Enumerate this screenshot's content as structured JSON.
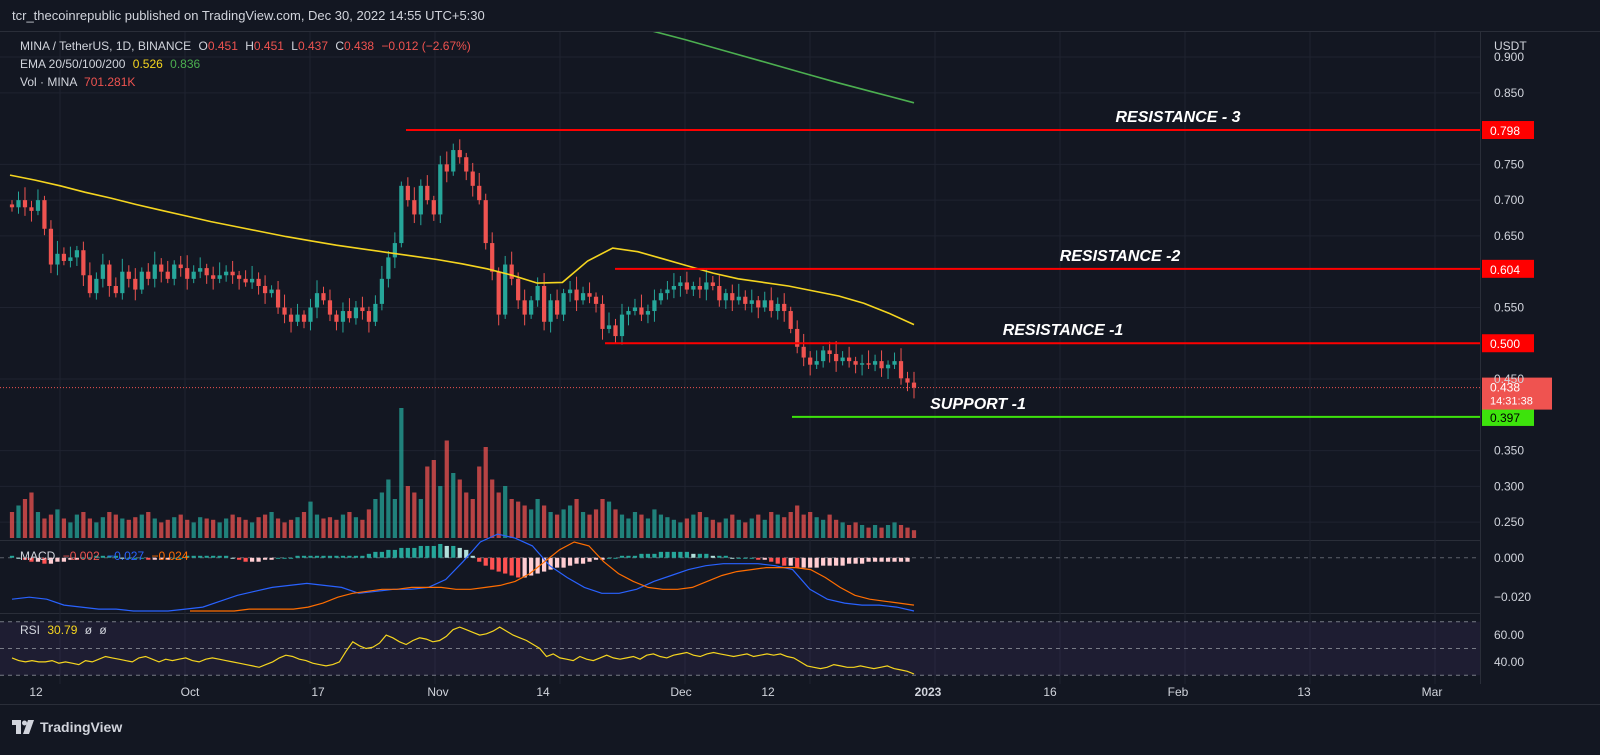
{
  "header": {
    "publish_line": "tcr_thecoinrepublic published on TradingView.com, Dec 30, 2022 14:55 UTC+5:30"
  },
  "legend": {
    "symbol": "MINA / TetherUS, 1D, BINANCE",
    "o_label": "O",
    "o": "0.451",
    "h_label": "H",
    "h": "0.451",
    "l_label": "L",
    "l": "0.437",
    "c_label": "C",
    "c": "0.438",
    "change": "−0.012 (−2.67%)",
    "ema_label": "EMA 20/50/100/200",
    "ema_val1": "0.526",
    "ema_val2": "0.836",
    "vol_label": "Vol · MINA",
    "vol_val": "701.281K"
  },
  "macd_legend": {
    "label": "MACD",
    "hist": "−0.002",
    "macd": "−0.027",
    "signal": "−0.024"
  },
  "rsi_legend": {
    "label": "RSI",
    "value": "30.79",
    "a": "ø",
    "b": "ø"
  },
  "footer": {
    "brand": "TradingView"
  },
  "colors": {
    "up": "#26a69a",
    "down": "#ef5350",
    "ema50": "#f5d51f",
    "ema200": "#4caf50",
    "resistance": "#ff0000",
    "support": "#3de30c",
    "macd": "#2962ff",
    "signal": "#ff6d00",
    "rsi": "#f5d51f"
  },
  "chart_data": {
    "type": "candlestick",
    "price_axis": {
      "unit": "USDT",
      "ticks": [
        "0.900",
        "0.850",
        "0.750",
        "0.700",
        "0.650",
        "0.550",
        "0.450",
        "0.350",
        "0.300",
        "0.250"
      ],
      "ylim": [
        0.225,
        0.935
      ],
      "last_price": "0.438",
      "countdown": "14:31:38"
    },
    "time_axis": {
      "labels": [
        "12",
        "Oct",
        "17",
        "Nov",
        "14",
        "Dec",
        "12",
        "2023",
        "16",
        "Feb",
        "13",
        "Mar"
      ]
    },
    "levels": [
      {
        "name": "RESISTANCE - 3",
        "value": 0.798,
        "label": "0.798",
        "kind": "resistance"
      },
      {
        "name": "RESISTANCE -2",
        "value": 0.604,
        "label": "0.604",
        "kind": "resistance"
      },
      {
        "name": "RESISTANCE -1",
        "value": 0.5,
        "label": "0.500",
        "kind": "resistance"
      },
      {
        "name": "SUPPORT -1",
        "value": 0.397,
        "label": "0.397",
        "kind": "support"
      }
    ],
    "closes": [
      0.69,
      0.7,
      0.69,
      0.685,
      0.7,
      0.66,
      0.61,
      0.625,
      0.615,
      0.62,
      0.63,
      0.595,
      0.57,
      0.59,
      0.61,
      0.58,
      0.57,
      0.6,
      0.59,
      0.575,
      0.6,
      0.59,
      0.61,
      0.6,
      0.59,
      0.61,
      0.605,
      0.59,
      0.6,
      0.605,
      0.595,
      0.59,
      0.595,
      0.6,
      0.595,
      0.59,
      0.585,
      0.59,
      0.58,
      0.57,
      0.575,
      0.55,
      0.54,
      0.53,
      0.54,
      0.53,
      0.55,
      0.57,
      0.56,
      0.54,
      0.53,
      0.545,
      0.535,
      0.55,
      0.545,
      0.53,
      0.555,
      0.59,
      0.62,
      0.64,
      0.72,
      0.7,
      0.68,
      0.72,
      0.7,
      0.68,
      0.75,
      0.74,
      0.77,
      0.76,
      0.74,
      0.72,
      0.7,
      0.64,
      0.6,
      0.54,
      0.61,
      0.59,
      0.56,
      0.54,
      0.56,
      0.58,
      0.53,
      0.56,
      0.54,
      0.57,
      0.575,
      0.56,
      0.57,
      0.565,
      0.555,
      0.52,
      0.525,
      0.51,
      0.54,
      0.545,
      0.55,
      0.54,
      0.545,
      0.56,
      0.57,
      0.575,
      0.58,
      0.585,
      0.575,
      0.58,
      0.575,
      0.585,
      0.58,
      0.56,
      0.57,
      0.56,
      0.565,
      0.555,
      0.56,
      0.55,
      0.56,
      0.545,
      0.555,
      0.545,
      0.52,
      0.495,
      0.48,
      0.47,
      0.475,
      0.49,
      0.485,
      0.475,
      0.48,
      0.475,
      0.47,
      0.472,
      0.47,
      0.475,
      0.465,
      0.47,
      0.475,
      0.451,
      0.445,
      0.438
    ],
    "ema50": [
      0.735,
      0.728,
      0.72,
      0.711,
      0.703,
      0.694,
      0.686,
      0.678,
      0.67,
      0.663,
      0.656,
      0.649,
      0.643,
      0.637,
      0.632,
      0.627,
      0.622,
      0.617,
      0.611,
      0.604,
      0.595,
      0.584,
      0.585,
      0.615,
      0.633,
      0.628,
      0.618,
      0.608,
      0.598,
      0.59,
      0.585,
      0.58,
      0.573,
      0.566,
      0.556,
      0.542,
      0.526
    ],
    "ema200": [
      0.938,
      0.924,
      0.909,
      0.894,
      0.879,
      0.864,
      0.85,
      0.836
    ],
    "volume_scale_max": 1.0,
    "volumes": [
      0.2,
      0.25,
      0.3,
      0.35,
      0.2,
      0.15,
      0.18,
      0.22,
      0.15,
      0.12,
      0.18,
      0.2,
      0.15,
      0.12,
      0.16,
      0.2,
      0.18,
      0.15,
      0.14,
      0.16,
      0.18,
      0.2,
      0.15,
      0.12,
      0.14,
      0.16,
      0.18,
      0.14,
      0.12,
      0.16,
      0.15,
      0.14,
      0.12,
      0.15,
      0.18,
      0.16,
      0.14,
      0.12,
      0.16,
      0.18,
      0.2,
      0.15,
      0.12,
      0.14,
      0.16,
      0.2,
      0.28,
      0.18,
      0.15,
      0.16,
      0.14,
      0.18,
      0.2,
      0.16,
      0.14,
      0.22,
      0.3,
      0.35,
      0.45,
      0.3,
      1.0,
      0.4,
      0.35,
      0.3,
      0.55,
      0.6,
      0.4,
      0.75,
      0.5,
      0.45,
      0.35,
      0.3,
      0.55,
      0.7,
      0.45,
      0.35,
      0.4,
      0.3,
      0.28,
      0.25,
      0.22,
      0.3,
      0.25,
      0.2,
      0.18,
      0.22,
      0.25,
      0.3,
      0.2,
      0.18,
      0.22,
      0.3,
      0.28,
      0.22,
      0.18,
      0.15,
      0.2,
      0.18,
      0.15,
      0.22,
      0.18,
      0.16,
      0.14,
      0.12,
      0.15,
      0.18,
      0.2,
      0.16,
      0.14,
      0.12,
      0.15,
      0.18,
      0.14,
      0.12,
      0.15,
      0.18,
      0.14,
      0.2,
      0.18,
      0.16,
      0.2,
      0.25,
      0.18,
      0.2,
      0.16,
      0.14,
      0.18,
      0.14,
      0.12,
      0.1,
      0.12,
      0.1,
      0.08,
      0.1,
      0.08,
      0.1,
      0.12,
      0.1,
      0.08,
      0.06
    ],
    "macd_axis": {
      "ticks": [
        "0.000",
        "−0.020"
      ],
      "ylim": [
        -0.028,
        0.008
      ]
    },
    "macd_hist": [
      0.001,
      0.0,
      -0.001,
      -0.002,
      -0.002,
      -0.003,
      -0.003,
      -0.002,
      -0.002,
      -0.001,
      -0.001,
      0.0,
      0.0,
      0.001,
      0.001,
      0.001,
      0.001,
      0.0,
      0.0,
      0.0,
      0.0,
      -0.001,
      -0.001,
      -0.001,
      -0.001,
      0.0,
      0.0,
      0.001,
      0.001,
      0.001,
      0.001,
      0.001,
      0.001,
      0.001,
      0.0,
      -0.001,
      -0.002,
      -0.002,
      -0.002,
      -0.001,
      -0.001,
      0.0,
      0.0,
      0.0,
      0.001,
      0.001,
      0.001,
      0.001,
      0.001,
      0.001,
      0.001,
      0.001,
      0.001,
      0.001,
      0.001,
      0.002,
      0.003,
      0.003,
      0.004,
      0.004,
      0.005,
      0.005,
      0.005,
      0.006,
      0.006,
      0.006,
      0.007,
      0.006,
      0.006,
      0.005,
      0.004,
      0.001,
      -0.002,
      -0.004,
      -0.006,
      -0.007,
      -0.008,
      -0.009,
      -0.01,
      -0.01,
      -0.009,
      -0.008,
      -0.007,
      -0.006,
      -0.005,
      -0.005,
      -0.004,
      -0.003,
      -0.003,
      -0.002,
      -0.001,
      -0.001,
      0.0,
      0.0,
      0.001,
      0.001,
      0.001,
      0.002,
      0.002,
      0.002,
      0.003,
      0.003,
      0.003,
      0.003,
      0.003,
      0.002,
      0.002,
      0.002,
      0.001,
      0.001,
      0.001,
      0.0,
      0.0,
      0.0,
      0.0,
      -0.001,
      -0.001,
      -0.002,
      -0.003,
      -0.004,
      -0.004,
      -0.005,
      -0.005,
      -0.005,
      -0.005,
      -0.004,
      -0.004,
      -0.004,
      -0.004,
      -0.003,
      -0.003,
      -0.003,
      -0.002,
      -0.002,
      -0.002,
      -0.002,
      -0.002,
      -0.002,
      -0.002
    ],
    "macd_line": [
      -0.021,
      -0.02,
      -0.021,
      -0.024,
      -0.025,
      -0.026,
      -0.026,
      -0.027,
      -0.027,
      -0.027,
      -0.026,
      -0.025,
      -0.022,
      -0.019,
      -0.017,
      -0.015,
      -0.014,
      -0.013,
      -0.014,
      -0.015,
      -0.018,
      -0.017,
      -0.016,
      -0.016,
      -0.015,
      -0.011,
      -0.002,
      0.008,
      0.012,
      0.01,
      0.006,
      -0.004,
      -0.01,
      -0.015,
      -0.018,
      -0.018,
      -0.016,
      -0.012,
      -0.009,
      -0.006,
      -0.004,
      -0.003,
      -0.003,
      -0.003,
      -0.004,
      -0.006,
      -0.016,
      -0.021,
      -0.023,
      -0.024,
      -0.024,
      -0.025,
      -0.027
    ],
    "signal_line": [
      -0.027,
      -0.027,
      -0.027,
      -0.027,
      -0.026,
      -0.026,
      -0.026,
      -0.026,
      -0.025,
      -0.023,
      -0.02,
      -0.018,
      -0.017,
      -0.016,
      -0.016,
      -0.015,
      -0.015,
      -0.015,
      -0.016,
      -0.016,
      -0.015,
      -0.014,
      -0.012,
      -0.008,
      -0.002,
      0.004,
      0.008,
      0.006,
      -0.002,
      -0.008,
      -0.012,
      -0.015,
      -0.016,
      -0.016,
      -0.015,
      -0.012,
      -0.009,
      -0.007,
      -0.006,
      -0.005,
      -0.005,
      -0.005,
      -0.006,
      -0.01,
      -0.015,
      -0.019,
      -0.021,
      -0.022,
      -0.023,
      -0.024
    ],
    "rsi_axis": {
      "ticks": [
        "60.00",
        "40.00"
      ],
      "bands": [
        70,
        30
      ],
      "ylim": [
        25,
        75
      ]
    },
    "rsi": [
      43,
      41,
      40,
      41,
      40,
      40,
      41,
      39,
      40,
      39,
      38,
      41,
      40,
      42,
      44,
      43,
      42,
      41,
      40,
      43,
      44,
      42,
      40,
      42,
      41,
      42,
      43,
      41,
      40,
      42,
      43,
      42,
      41,
      40,
      39,
      38,
      37,
      36,
      38,
      40,
      43,
      45,
      44,
      42,
      41,
      39,
      38,
      37,
      38,
      40,
      48,
      55,
      52,
      50,
      51,
      54,
      60,
      58,
      55,
      53,
      56,
      58,
      57,
      55,
      56,
      59,
      64,
      66,
      64,
      62,
      60,
      61,
      63,
      66,
      63,
      60,
      58,
      56,
      53,
      50,
      44,
      46,
      43,
      42,
      41,
      44,
      42,
      41,
      43,
      45,
      43,
      42,
      43,
      44,
      42,
      45,
      46,
      44,
      43,
      45,
      46,
      47,
      45,
      44,
      46,
      47,
      46,
      45,
      44,
      45,
      46,
      44,
      45,
      46,
      45,
      46,
      44,
      43,
      40,
      37,
      36,
      35,
      36,
      38,
      37,
      36,
      36,
      37,
      36,
      35,
      36,
      37,
      35,
      34,
      33,
      31
    ]
  }
}
